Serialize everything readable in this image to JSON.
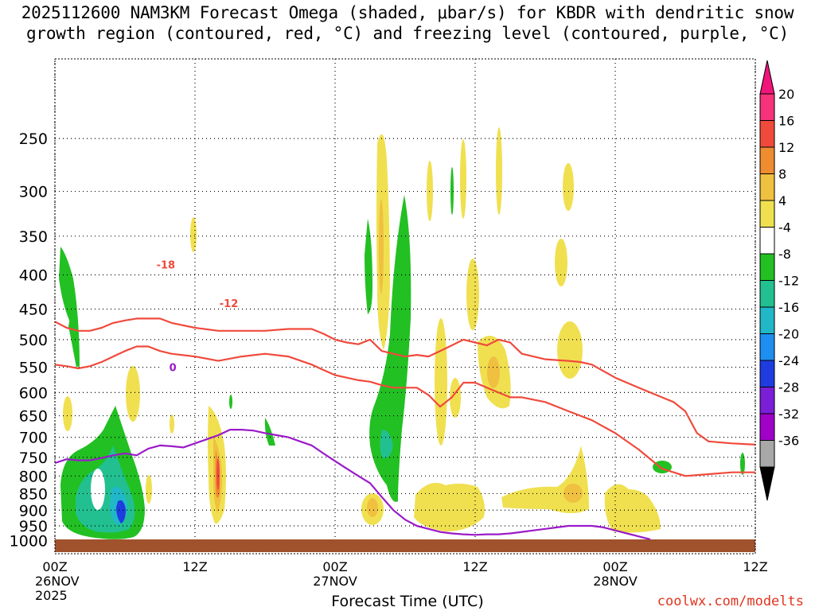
{
  "title": {
    "line1": "2025112600 NAM3KM Forecast Omega (shaded, μbar/s) for KBDR with dendritic snow",
    "line2": "growth region (contoured, red, °C) and freezing level (contoured, purple, °C)"
  },
  "credit": "coolwx.com/modelts",
  "chart_data": {
    "type": "area",
    "title": "2025112600 NAM3KM Forecast Omega (shaded, μbar/s) for KBDR with dendritic snow growth region (contoured, red, °C) and freezing level (contoured, purple, °C)",
    "xlabel": "Forecast Time (UTC)",
    "ylabel": "",
    "x_range_hours": [
      0,
      60
    ],
    "y_range_mb": [
      1040,
      190
    ],
    "y_scale": "log-pressure",
    "x_ticks": [
      {
        "hour": 0,
        "l1": "00Z",
        "l2": "26NOV",
        "l3": "2025"
      },
      {
        "hour": 12,
        "l1": "12Z",
        "l2": "",
        "l3": ""
      },
      {
        "hour": 24,
        "l1": "00Z",
        "l2": "27NOV",
        "l3": ""
      },
      {
        "hour": 36,
        "l1": "12Z",
        "l2": "",
        "l3": ""
      },
      {
        "hour": 48,
        "l1": "00Z",
        "l2": "28NOV",
        "l3": ""
      },
      {
        "hour": 60,
        "l1": "12Z",
        "l2": "",
        "l3": ""
      }
    ],
    "y_ticks": [
      250,
      300,
      350,
      400,
      450,
      500,
      550,
      600,
      650,
      700,
      750,
      800,
      850,
      900,
      950,
      1000
    ],
    "grid": true,
    "colorbar": {
      "labels": [
        "20",
        "16",
        "12",
        "8",
        "4",
        "-4",
        "-8",
        "-12",
        "-16",
        "-20",
        "-24",
        "-28",
        "-32",
        "-36"
      ],
      "colors": [
        "#f5327a",
        "#f04a3c",
        "#ee8c30",
        "#f0c040",
        "#f0e050",
        "#ffffff",
        "#22c022",
        "#22c090",
        "#20b8c8",
        "#1e8ef0",
        "#1e3ce0",
        "#7a1ed8",
        "#a000c8",
        "#a8a8a8"
      ],
      "top_arrow_color": "#f0157a",
      "bottom_arrow_color": "#000000"
    },
    "series": [
      {
        "name": "-18",
        "color": "#f04a3c",
        "hours": [
          0,
          1,
          2,
          3,
          4,
          5,
          6,
          7,
          8,
          9,
          10,
          12,
          14,
          16,
          18,
          20,
          22,
          23,
          24,
          25,
          26,
          27,
          28,
          29,
          30,
          31,
          32,
          33,
          34,
          35,
          36,
          37,
          38,
          39,
          40,
          42,
          44,
          45,
          46,
          48,
          50,
          52,
          53,
          54,
          55,
          56,
          58,
          60
        ],
        "pressure": [
          470,
          480,
          485,
          485,
          480,
          472,
          468,
          465,
          465,
          465,
          472,
          480,
          485,
          485,
          485,
          482,
          482,
          490,
          500,
          505,
          508,
          500,
          520,
          525,
          530,
          527,
          530,
          520,
          510,
          500,
          505,
          510,
          500,
          505,
          525,
          535,
          538,
          540,
          545,
          570,
          590,
          610,
          620,
          640,
          690,
          710,
          715,
          718
        ],
        "label_at": [
          9.5,
          386
        ]
      },
      {
        "name": "-12",
        "color": "#f04a3c",
        "hours": [
          0,
          1,
          2,
          3,
          4,
          5,
          6,
          7,
          8,
          9,
          10,
          12,
          14,
          16,
          18,
          20,
          22,
          23,
          24,
          25,
          26,
          27,
          28,
          29,
          30,
          31,
          32,
          33,
          34,
          35,
          36,
          37,
          38,
          39,
          40,
          42,
          44,
          46,
          48,
          50,
          52,
          54,
          56,
          58,
          60
        ],
        "pressure": [
          545,
          548,
          552,
          548,
          540,
          530,
          520,
          512,
          512,
          520,
          525,
          530,
          538,
          530,
          525,
          530,
          545,
          555,
          565,
          570,
          575,
          578,
          585,
          590,
          590,
          590,
          605,
          630,
          610,
          580,
          580,
          590,
          600,
          610,
          610,
          620,
          640,
          660,
          690,
          730,
          780,
          800,
          795,
          790,
          790
        ],
        "label_at": [
          14.9,
          441
        ]
      },
      {
        "name": "0",
        "color": "#9a1ac8",
        "hours": [
          0,
          1,
          2,
          3,
          4,
          5,
          6,
          7,
          8,
          9,
          10,
          11,
          12,
          13,
          14,
          15,
          16,
          17,
          18,
          19,
          20,
          21,
          22,
          23,
          24,
          25,
          26,
          27,
          28,
          29,
          30,
          31,
          32,
          33,
          34,
          35,
          36,
          37,
          38,
          39,
          40,
          41,
          42,
          43,
          44,
          45,
          46,
          47,
          48,
          49,
          50,
          51
        ],
        "pressure": [
          765,
          755,
          758,
          758,
          752,
          745,
          740,
          745,
          728,
          720,
          722,
          725,
          715,
          705,
          695,
          682,
          682,
          684,
          690,
          695,
          700,
          710,
          720,
          740,
          760,
          780,
          800,
          820,
          860,
          900,
          930,
          950,
          960,
          970,
          975,
          978,
          980,
          978,
          978,
          975,
          970,
          965,
          960,
          955,
          950,
          950,
          950,
          955,
          965,
          975,
          985,
          995
        ],
        "label_at": [
          10.1,
          550
        ]
      }
    ]
  }
}
